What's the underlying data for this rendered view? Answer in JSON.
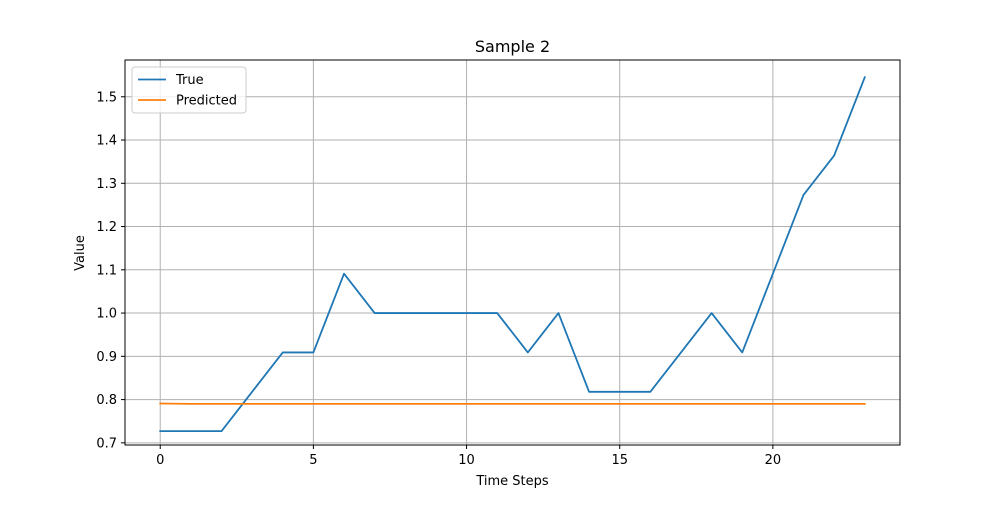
{
  "chart_data": {
    "type": "line",
    "title": "Sample 2",
    "xlabel": "Time Steps",
    "ylabel": "Value",
    "xlim": [
      -1.15,
      24.15
    ],
    "ylim": [
      0.695,
      1.585
    ],
    "xticks": [
      0,
      5,
      10,
      15,
      20
    ],
    "yticks": [
      0.7,
      0.8,
      0.9,
      1.0,
      1.1,
      1.2,
      1.3,
      1.4,
      1.5
    ],
    "ytick_labels": [
      "0.7",
      "0.8",
      "0.9",
      "1.0",
      "1.1",
      "1.2",
      "1.3",
      "1.4",
      "1.5"
    ],
    "grid": true,
    "legend_position": "top-left",
    "x": [
      0,
      1,
      2,
      3,
      4,
      5,
      6,
      7,
      8,
      9,
      10,
      11,
      12,
      13,
      14,
      15,
      16,
      17,
      18,
      19,
      20,
      21,
      22,
      23
    ],
    "series": [
      {
        "name": "True",
        "color": "#1f77b4",
        "values": [
          0.727,
          0.727,
          0.727,
          0.818,
          0.909,
          0.909,
          1.091,
          1.0,
          1.0,
          1.0,
          1.0,
          1.0,
          0.909,
          1.0,
          0.818,
          0.818,
          0.818,
          0.909,
          1.0,
          0.909,
          1.091,
          1.273,
          1.364,
          1.545
        ]
      },
      {
        "name": "Predicted",
        "color": "#ff7f0e",
        "values": [
          0.791,
          0.79,
          0.79,
          0.79,
          0.79,
          0.79,
          0.79,
          0.79,
          0.79,
          0.79,
          0.79,
          0.79,
          0.79,
          0.79,
          0.79,
          0.79,
          0.79,
          0.79,
          0.79,
          0.79,
          0.79,
          0.79,
          0.79,
          0.79
        ]
      }
    ]
  }
}
